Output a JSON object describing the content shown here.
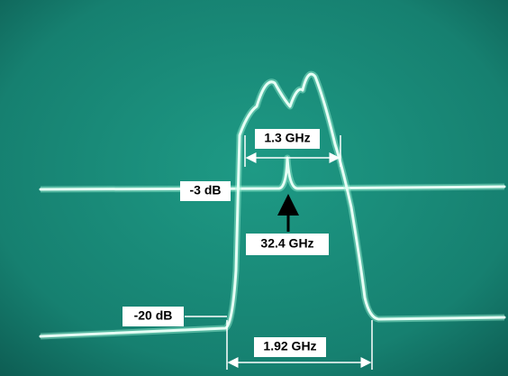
{
  "annotations": {
    "bandwidth_3db": "1.3 GHz",
    "level_3db": "-3 dB",
    "center_frequency": "32.4 GHz",
    "level_20db": "-20 dB",
    "bandwidth_20db": "1.92 GHz"
  }
}
